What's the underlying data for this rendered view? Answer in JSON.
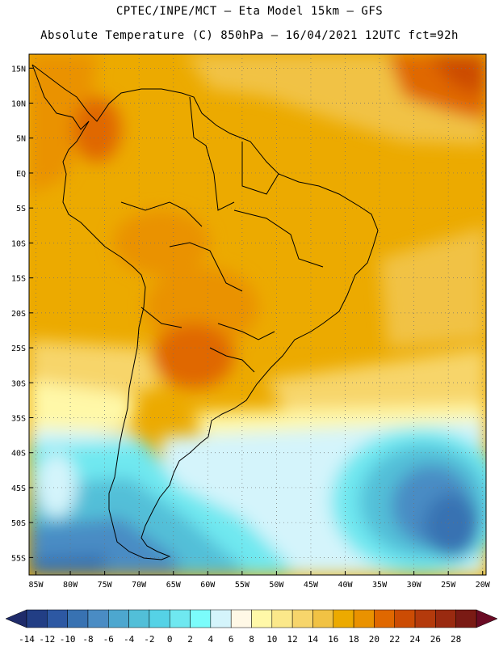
{
  "header": {
    "line1": "CPTEC/INPE/MCT –  Eta Model 15km – GFS",
    "line2": "Absolute Temperature (C) 850hPa – 16/04/2021 12UTC fct=92h"
  },
  "map": {
    "lat_labels": [
      "15N",
      "10N",
      "5N",
      "EQ",
      "5S",
      "10S",
      "15S",
      "20S",
      "25S",
      "30S",
      "35S",
      "40S",
      "45S",
      "50S",
      "55S"
    ],
    "lon_labels": [
      "85W",
      "80W",
      "75W",
      "70W",
      "65W",
      "60W",
      "55W",
      "50W",
      "45W",
      "40W",
      "35W",
      "30W",
      "25W",
      "20W"
    ],
    "grid": "dotted",
    "extent": {
      "lon": [
        -86,
        -19.5
      ],
      "lat": [
        -57.5,
        17
      ]
    }
  },
  "colorbar": {
    "labels": [
      "-14",
      "-12",
      "-10",
      "-8",
      "-6",
      "-4",
      "-2",
      "0",
      "2",
      "4",
      "6",
      "8",
      "10",
      "12",
      "14",
      "16",
      "18",
      "20",
      "22",
      "24",
      "26",
      "28"
    ],
    "colors": [
      "#223e85",
      "#2d58a3",
      "#3872b2",
      "#4a8cc4",
      "#4da7cf",
      "#52bfd8",
      "#55d2e6",
      "#6fe8f0",
      "#7bfcfb",
      "#d4f4fb",
      "#fff8e6",
      "#fff8a8",
      "#fbe88a",
      "#f7d56b",
      "#f1c244",
      "#ecaa00",
      "#ea9200",
      "#e06800",
      "#cc4c04",
      "#b43a0c",
      "#9a2a10",
      "#7a1a14"
    ],
    "low_arrow_color": "#1f2b6a",
    "high_arrow_color": "#6a0a24"
  }
}
